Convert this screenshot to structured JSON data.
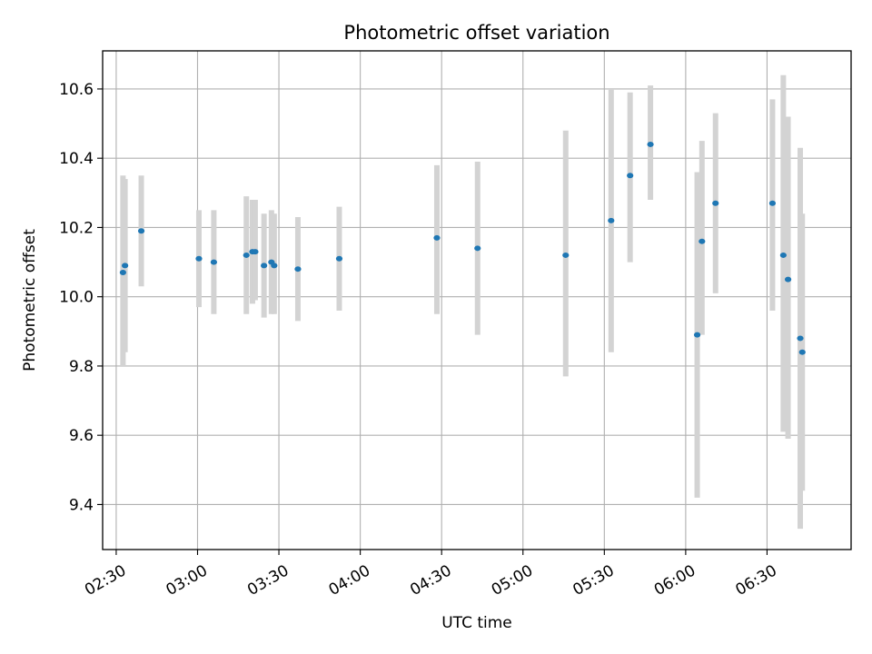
{
  "chart_data": {
    "type": "scatter",
    "title": "Photometric offset variation",
    "xlabel": "UTC time",
    "ylabel": "Photometric offset",
    "x_unit": "UTC HH:MM",
    "xlim": [
      "02:25",
      "07:01"
    ],
    "ylim": [
      9.27,
      10.71
    ],
    "x_ticks": [
      "02:30",
      "03:00",
      "03:30",
      "04:00",
      "04:30",
      "05:00",
      "05:30",
      "06:00",
      "06:30"
    ],
    "y_ticks": [
      9.4,
      9.6,
      9.8,
      10.0,
      10.2,
      10.4,
      10.6
    ],
    "grid": true,
    "point_color": "#1f77b4",
    "errorbar_color": "#d3d3d3",
    "points": [
      {
        "x": "02:32:30",
        "y": 10.07,
        "lo": 9.8,
        "hi": 10.35
      },
      {
        "x": "02:33:15",
        "y": 10.09,
        "lo": 9.84,
        "hi": 10.34
      },
      {
        "x": "02:39:15",
        "y": 10.19,
        "lo": 10.03,
        "hi": 10.35
      },
      {
        "x": "03:00:30",
        "y": 10.11,
        "lo": 9.97,
        "hi": 10.25
      },
      {
        "x": "03:06:00",
        "y": 10.1,
        "lo": 9.95,
        "hi": 10.25
      },
      {
        "x": "03:18:00",
        "y": 10.12,
        "lo": 9.95,
        "hi": 10.29
      },
      {
        "x": "03:20:15",
        "y": 10.13,
        "lo": 9.98,
        "hi": 10.28
      },
      {
        "x": "03:21:15",
        "y": 10.13,
        "lo": 9.99,
        "hi": 10.28
      },
      {
        "x": "03:24:30",
        "y": 10.09,
        "lo": 9.94,
        "hi": 10.24
      },
      {
        "x": "03:27:15",
        "y": 10.1,
        "lo": 9.95,
        "hi": 10.25
      },
      {
        "x": "03:28:15",
        "y": 10.09,
        "lo": 9.95,
        "hi": 10.24
      },
      {
        "x": "03:37:00",
        "y": 10.08,
        "lo": 9.93,
        "hi": 10.23
      },
      {
        "x": "03:52:15",
        "y": 10.11,
        "lo": 9.96,
        "hi": 10.26
      },
      {
        "x": "04:28:15",
        "y": 10.17,
        "lo": 9.95,
        "hi": 10.38
      },
      {
        "x": "04:43:15",
        "y": 10.14,
        "lo": 9.89,
        "hi": 10.39
      },
      {
        "x": "05:15:45",
        "y": 10.12,
        "lo": 9.77,
        "hi": 10.48
      },
      {
        "x": "05:32:30",
        "y": 10.22,
        "lo": 9.84,
        "hi": 10.6
      },
      {
        "x": "05:39:30",
        "y": 10.35,
        "lo": 10.1,
        "hi": 10.59
      },
      {
        "x": "05:47:00",
        "y": 10.44,
        "lo": 10.28,
        "hi": 10.61
      },
      {
        "x": "06:04:15",
        "y": 9.89,
        "lo": 9.42,
        "hi": 10.36
      },
      {
        "x": "06:06:00",
        "y": 10.16,
        "lo": 9.89,
        "hi": 10.45
      },
      {
        "x": "06:11:00",
        "y": 10.27,
        "lo": 10.01,
        "hi": 10.53
      },
      {
        "x": "06:32:00",
        "y": 10.27,
        "lo": 9.96,
        "hi": 10.57
      },
      {
        "x": "06:36:00",
        "y": 10.12,
        "lo": 9.61,
        "hi": 10.64
      },
      {
        "x": "06:37:45",
        "y": 10.05,
        "lo": 9.59,
        "hi": 10.52
      },
      {
        "x": "06:42:15",
        "y": 9.88,
        "lo": 9.33,
        "hi": 10.43
      },
      {
        "x": "06:43:00",
        "y": 9.84,
        "lo": 9.44,
        "hi": 10.24
      }
    ]
  }
}
